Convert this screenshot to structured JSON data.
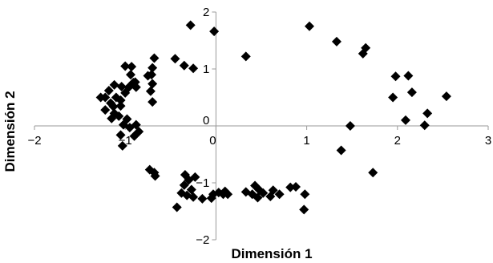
{
  "chart_data": {
    "type": "scatter",
    "title": "",
    "xlabel": "Dimensión 1",
    "ylabel": "Dimensión 2",
    "xlim": [
      -2,
      3
    ],
    "ylim": [
      -2,
      2
    ],
    "x_ticks": [
      -2,
      -1,
      0,
      1,
      2,
      3
    ],
    "y_ticks": [
      -2,
      -1,
      0,
      1,
      2
    ],
    "x_tick_labels": [
      "−2",
      "−1",
      "0",
      "1",
      "2",
      "3"
    ],
    "y_tick_labels": [
      "−2",
      "−1",
      "0",
      "1",
      "2"
    ],
    "marker": "diamond",
    "marker_color": "#000000",
    "grid": false,
    "legend": "none",
    "points": [
      [
        -0.28,
        1.77
      ],
      [
        -0.02,
        1.66
      ],
      [
        0.33,
        1.22
      ],
      [
        -0.45,
        1.18
      ],
      [
        -0.35,
        1.06
      ],
      [
        -0.25,
        1.01
      ],
      [
        -0.68,
        1.19
      ],
      [
        -0.7,
        1.02
      ],
      [
        -0.71,
        0.9
      ],
      [
        -0.7,
        0.74
      ],
      [
        -0.75,
        0.88
      ],
      [
        -0.72,
        0.61
      ],
      [
        -0.7,
        0.42
      ],
      [
        -1.0,
        1.05
      ],
      [
        -0.93,
        1.04
      ],
      [
        -0.94,
        0.9
      ],
      [
        -0.91,
        0.76
      ],
      [
        -0.96,
        0.68
      ],
      [
        -0.89,
        0.77
      ],
      [
        -0.88,
        0.68
      ],
      [
        -1.0,
        0.58
      ],
      [
        -1.04,
        0.69
      ],
      [
        -1.12,
        0.72
      ],
      [
        -1.18,
        0.62
      ],
      [
        -1.1,
        0.5
      ],
      [
        -1.05,
        0.45
      ],
      [
        -1.22,
        0.5
      ],
      [
        -1.27,
        0.5
      ],
      [
        -1.16,
        0.4
      ],
      [
        -1.13,
        0.34
      ],
      [
        -1.22,
        0.28
      ],
      [
        -1.12,
        0.22
      ],
      [
        -1.05,
        0.35
      ],
      [
        -1.07,
        0.17
      ],
      [
        -1.15,
        0.13
      ],
      [
        -0.98,
        0.12
      ],
      [
        -1.02,
        0.02
      ],
      [
        -0.95,
        -0.03
      ],
      [
        -0.88,
        0.02
      ],
      [
        -0.85,
        -0.1
      ],
      [
        -0.9,
        -0.18
      ],
      [
        -1.05,
        -0.16
      ],
      [
        -1.03,
        -0.35
      ],
      [
        -0.73,
        -0.77
      ],
      [
        -0.68,
        -0.82
      ],
      [
        -0.67,
        -0.88
      ],
      [
        -0.34,
        -0.86
      ],
      [
        -0.3,
        -0.95
      ],
      [
        -0.35,
        -1.04
      ],
      [
        -0.23,
        -0.9
      ],
      [
        -0.38,
        -1.18
      ],
      [
        -0.27,
        -1.12
      ],
      [
        -0.32,
        -1.22
      ],
      [
        -0.25,
        -1.25
      ],
      [
        -0.43,
        -1.43
      ],
      [
        -0.15,
        -1.28
      ],
      [
        -0.05,
        -1.27
      ],
      [
        -0.03,
        -1.2
      ],
      [
        0.03,
        -1.17
      ],
      [
        0.08,
        -1.2
      ],
      [
        0.1,
        -1.15
      ],
      [
        0.13,
        -1.2
      ],
      [
        0.33,
        -1.16
      ],
      [
        0.4,
        -1.2
      ],
      [
        0.43,
        -1.05
      ],
      [
        0.48,
        -1.13
      ],
      [
        0.46,
        -1.26
      ],
      [
        0.52,
        -1.18
      ],
      [
        0.63,
        -1.13
      ],
      [
        0.6,
        -1.24
      ],
      [
        0.7,
        -1.2
      ],
      [
        0.82,
        -1.08
      ],
      [
        0.88,
        -1.07
      ],
      [
        0.98,
        -1.2
      ],
      [
        0.97,
        -1.47
      ],
      [
        1.03,
        1.75
      ],
      [
        1.33,
        1.48
      ],
      [
        1.65,
        1.37
      ],
      [
        1.62,
        1.27
      ],
      [
        1.38,
        -0.43
      ],
      [
        1.48,
        0.0
      ],
      [
        1.73,
        -0.82
      ],
      [
        1.95,
        0.5
      ],
      [
        1.98,
        0.87
      ],
      [
        2.12,
        0.88
      ],
      [
        2.16,
        0.59
      ],
      [
        2.09,
        0.1
      ],
      [
        2.3,
        0.01
      ],
      [
        2.33,
        0.22
      ],
      [
        2.54,
        0.52
      ]
    ]
  }
}
